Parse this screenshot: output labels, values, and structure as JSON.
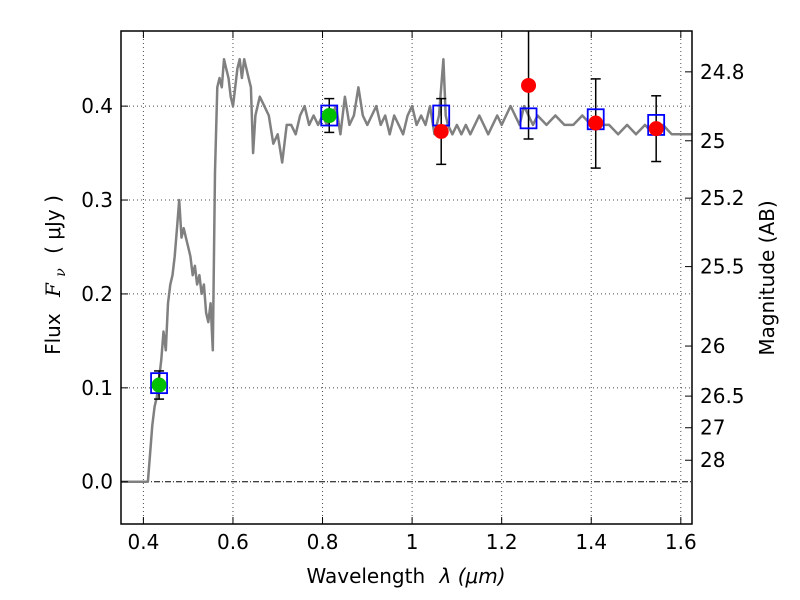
{
  "chart_data": {
    "type": "scatter",
    "title": "",
    "xlabel": "Wavelength",
    "xlabel_symbol": "λ (μm)",
    "ylabel": "Flux",
    "ylabel_symbol": "( μJy )",
    "ylabel_symbol_math": "F",
    "ylabel_symbol_sub": "ν",
    "y2label": "Magnitude (AB)",
    "xlim": [
      0.35,
      1.625
    ],
    "ylim": [
      -0.045,
      0.48
    ],
    "grid": true,
    "x_ticks": [
      0.4,
      0.6,
      0.8,
      1.0,
      1.2,
      1.4,
      1.6
    ],
    "x_tick_labels": [
      "0.4",
      "0.6",
      "0.8",
      "1",
      "1.2",
      "1.4",
      "1.6"
    ],
    "y_ticks": [
      0.0,
      0.1,
      0.2,
      0.3,
      0.4
    ],
    "y_tick_labels": [
      "0.0",
      "0.1",
      "0.2",
      "0.3",
      "0.4"
    ],
    "y2_ticks": [
      {
        "label": "24.8",
        "flux": 0.4365
      },
      {
        "label": "25",
        "flux": 0.3631
      },
      {
        "label": "25.2",
        "flux": 0.302
      },
      {
        "label": "25.5",
        "flux": 0.2291
      },
      {
        "label": "26",
        "flux": 0.1445
      },
      {
        "label": "26.5",
        "flux": 0.0912
      },
      {
        "label": "27",
        "flux": 0.0575
      },
      {
        "label": "28",
        "flux": 0.0229
      }
    ],
    "colors": {
      "spectrum": "#808080",
      "model_box": "#0000ff",
      "green_point": "#00c000",
      "red_point": "#ff0000",
      "errorbar": "#000000"
    },
    "series": [
      {
        "role": "model spectrum",
        "x": [
          0.35,
          0.41,
          0.415,
          0.42,
          0.425,
          0.43,
          0.435,
          0.44,
          0.445,
          0.45,
          0.455,
          0.46,
          0.465,
          0.47,
          0.475,
          0.48,
          0.485,
          0.49,
          0.495,
          0.5,
          0.505,
          0.51,
          0.515,
          0.52,
          0.525,
          0.53,
          0.535,
          0.54,
          0.545,
          0.55,
          0.555,
          0.56,
          0.565,
          0.57,
          0.575,
          0.58,
          0.585,
          0.59,
          0.595,
          0.6,
          0.605,
          0.61,
          0.615,
          0.62,
          0.625,
          0.63,
          0.635,
          0.64,
          0.645,
          0.65,
          0.66,
          0.67,
          0.68,
          0.69,
          0.7,
          0.71,
          0.72,
          0.73,
          0.74,
          0.75,
          0.76,
          0.77,
          0.78,
          0.79,
          0.8,
          0.81,
          0.82,
          0.83,
          0.84,
          0.85,
          0.86,
          0.87,
          0.88,
          0.89,
          0.9,
          0.91,
          0.92,
          0.93,
          0.94,
          0.95,
          0.96,
          0.97,
          0.98,
          0.99,
          1.0,
          1.01,
          1.02,
          1.03,
          1.04,
          1.05,
          1.06,
          1.065,
          1.07,
          1.075,
          1.08,
          1.09,
          1.1,
          1.11,
          1.12,
          1.13,
          1.14,
          1.15,
          1.16,
          1.17,
          1.18,
          1.19,
          1.2,
          1.21,
          1.22,
          1.23,
          1.24,
          1.25,
          1.26,
          1.27,
          1.28,
          1.3,
          1.32,
          1.34,
          1.36,
          1.38,
          1.4,
          1.42,
          1.44,
          1.46,
          1.48,
          1.5,
          1.52,
          1.54,
          1.56,
          1.58,
          1.6,
          1.625
        ],
        "y": [
          0.0,
          0.0,
          0.03,
          0.06,
          0.08,
          0.09,
          0.11,
          0.13,
          0.16,
          0.14,
          0.19,
          0.21,
          0.22,
          0.24,
          0.27,
          0.3,
          0.26,
          0.27,
          0.26,
          0.25,
          0.24,
          0.22,
          0.23,
          0.21,
          0.22,
          0.2,
          0.21,
          0.18,
          0.17,
          0.19,
          0.14,
          0.33,
          0.42,
          0.43,
          0.42,
          0.45,
          0.44,
          0.43,
          0.41,
          0.4,
          0.42,
          0.44,
          0.45,
          0.43,
          0.45,
          0.44,
          0.43,
          0.42,
          0.35,
          0.39,
          0.41,
          0.4,
          0.39,
          0.36,
          0.37,
          0.34,
          0.38,
          0.38,
          0.37,
          0.39,
          0.4,
          0.38,
          0.39,
          0.38,
          0.39,
          0.38,
          0.39,
          0.4,
          0.37,
          0.41,
          0.38,
          0.39,
          0.42,
          0.39,
          0.38,
          0.39,
          0.4,
          0.38,
          0.39,
          0.37,
          0.39,
          0.38,
          0.37,
          0.39,
          0.4,
          0.38,
          0.39,
          0.38,
          0.4,
          0.37,
          0.39,
          0.42,
          0.45,
          0.39,
          0.38,
          0.37,
          0.38,
          0.37,
          0.38,
          0.37,
          0.38,
          0.39,
          0.38,
          0.37,
          0.38,
          0.39,
          0.38,
          0.39,
          0.4,
          0.39,
          0.38,
          0.4,
          0.39,
          0.38,
          0.39,
          0.38,
          0.39,
          0.38,
          0.38,
          0.39,
          0.38,
          0.38,
          0.38,
          0.37,
          0.38,
          0.37,
          0.38,
          0.37,
          0.38,
          0.37,
          0.37,
          0.37
        ]
      },
      {
        "role": "model photometry",
        "marker": "square",
        "x": [
          0.435,
          0.815,
          1.065,
          1.26,
          1.41,
          1.545
        ],
        "y": [
          0.105,
          0.39,
          0.39,
          0.387,
          0.386,
          0.38
        ]
      },
      {
        "role": "detections",
        "marker": "circle",
        "x": [
          0.435,
          0.815
        ],
        "y": [
          0.103,
          0.39
        ],
        "yerr_low": [
          0.015,
          0.018
        ],
        "yerr_high": [
          0.015,
          0.018
        ]
      },
      {
        "role": "measurements",
        "marker": "circle",
        "x": [
          1.065,
          1.26,
          1.41,
          1.545
        ],
        "y": [
          0.373,
          0.422,
          0.382,
          0.376
        ],
        "yerr_low": [
          0.035,
          0.057,
          0.048,
          0.035
        ],
        "yerr_high": [
          0.035,
          0.075,
          0.047,
          0.035
        ]
      }
    ]
  }
}
